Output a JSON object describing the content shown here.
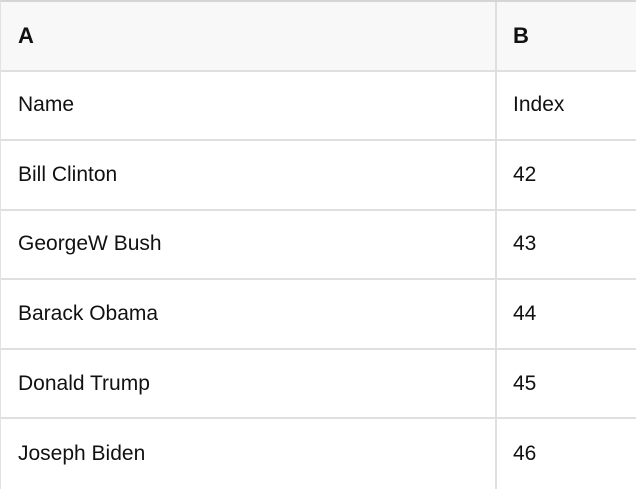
{
  "table": {
    "column_headers": [
      "A",
      "B"
    ],
    "rows": [
      [
        "Name",
        "Index"
      ],
      [
        "Bill Clinton",
        "42"
      ],
      [
        "GeorgeW Bush",
        "43"
      ],
      [
        "Barack Obama",
        "44"
      ],
      [
        "Donald Trump",
        "45"
      ],
      [
        "Joseph Biden",
        "46"
      ]
    ],
    "colors": {
      "header_bg": "#f8f8f8",
      "grid_line": "#dfdfdf",
      "top_border": "#d5d5d5",
      "left_border": "#e2e2e2",
      "text": "#111111"
    }
  }
}
